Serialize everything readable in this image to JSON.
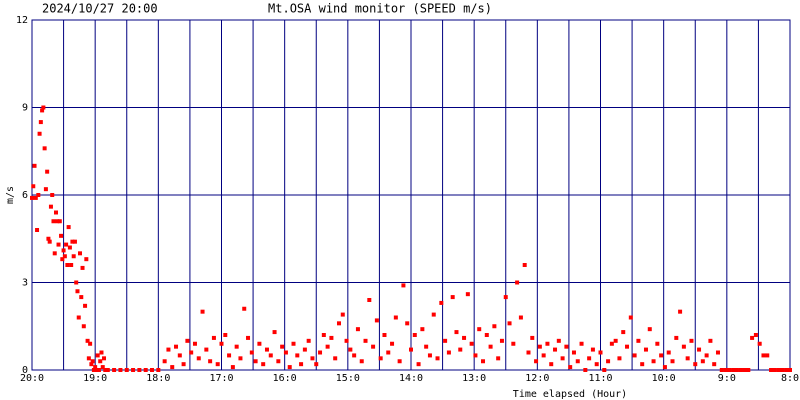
{
  "chart_data": {
    "type": "scatter",
    "header_left": "2024/10/27 20:00",
    "title": "Mt.OSA wind monitor (SPEED m/s)",
    "y_label": "m/s",
    "x_label": "Time elapsed (Hour)",
    "color": "#ff0000",
    "grid_color": "#000080",
    "grid": true,
    "xlim": [
      0,
      12
    ],
    "ylim": [
      0,
      12
    ],
    "yticks": [
      0,
      3,
      6,
      9,
      12
    ],
    "xticks": [
      {
        "value": 0,
        "label": "20:0"
      },
      {
        "value": 1,
        "label": "19:0"
      },
      {
        "value": 2,
        "label": "18:0"
      },
      {
        "value": 3,
        "label": "17:0"
      },
      {
        "value": 4,
        "label": "16:0"
      },
      {
        "value": 5,
        "label": "15:0"
      },
      {
        "value": 6,
        "label": "14:0"
      },
      {
        "value": 7,
        "label": "13:0"
      },
      {
        "value": 8,
        "label": "12:0"
      },
      {
        "value": 9,
        "label": "11:0"
      },
      {
        "value": 10,
        "label": "10:0"
      },
      {
        "value": 11,
        "label": "9:0"
      },
      {
        "value": 12,
        "label": "8:0"
      }
    ],
    "xminorticks": [
      0.5,
      1.5,
      2.5,
      3.5,
      4.5,
      5.5,
      6.5,
      7.5,
      8.5,
      9.5,
      10.5,
      11.5
    ],
    "x": [
      0,
      0.02,
      0.04,
      0.06,
      0.08,
      0.1,
      0.12,
      0.14,
      0.16,
      0.18,
      0.2,
      0.22,
      0.24,
      0.26,
      0.28,
      0.3,
      0.32,
      0.34,
      0.36,
      0.38,
      0.4,
      0.42,
      0.44,
      0.46,
      0.48,
      0.5,
      0.52,
      0.54,
      0.56,
      0.58,
      0.6,
      0.62,
      0.64,
      0.66,
      0.68,
      0.7,
      0.72,
      0.74,
      0.76,
      0.78,
      0.8,
      0.82,
      0.84,
      0.86,
      0.88,
      0.9,
      0.92,
      0.94,
      0.96,
      0.98,
      1,
      1.02,
      1.04,
      1.06,
      1.08,
      1.1,
      1.12,
      1.14,
      1.16,
      1.2,
      1.3,
      1.4,
      1.5,
      1.6,
      1.7,
      1.8,
      1.9,
      2,
      2.1,
      2.16,
      2.22,
      2.28,
      2.34,
      2.4,
      2.46,
      2.52,
      2.58,
      2.64,
      2.7,
      2.76,
      2.82,
      2.88,
      2.94,
      3,
      3.06,
      3.12,
      3.18,
      3.24,
      3.3,
      3.36,
      3.42,
      3.48,
      3.54,
      3.6,
      3.66,
      3.72,
      3.78,
      3.84,
      3.9,
      3.96,
      4.02,
      4.08,
      4.14,
      4.2,
      4.26,
      4.32,
      4.38,
      4.44,
      4.5,
      4.56,
      4.62,
      4.68,
      4.74,
      4.8,
      4.86,
      4.92,
      4.98,
      5.04,
      5.1,
      5.16,
      5.22,
      5.28,
      5.34,
      5.4,
      5.46,
      5.52,
      5.58,
      5.64,
      5.7,
      5.76,
      5.82,
      5.88,
      5.94,
      6,
      6.06,
      6.12,
      6.18,
      6.24,
      6.3,
      6.36,
      6.42,
      6.48,
      6.54,
      6.6,
      6.66,
      6.72,
      6.78,
      6.84,
      6.9,
      6.96,
      7.02,
      7.08,
      7.14,
      7.2,
      7.26,
      7.32,
      7.38,
      7.44,
      7.5,
      7.56,
      7.62,
      7.68,
      7.74,
      7.8,
      7.86,
      7.92,
      7.98,
      8.04,
      8.1,
      8.16,
      8.22,
      8.28,
      8.34,
      8.4,
      8.46,
      8.52,
      8.58,
      8.64,
      8.7,
      8.76,
      8.82,
      8.88,
      8.94,
      9,
      9.06,
      9.12,
      9.18,
      9.24,
      9.3,
      9.36,
      9.42,
      9.48,
      9.54,
      9.6,
      9.66,
      9.72,
      9.78,
      9.84,
      9.9,
      9.96,
      10.02,
      10.08,
      10.14,
      10.2,
      10.26,
      10.32,
      10.38,
      10.44,
      10.5,
      10.56,
      10.62,
      10.68,
      10.74,
      10.8,
      10.86,
      10.92,
      10.98,
      11.04,
      11.1,
      11.16,
      11.22,
      11.28,
      11.34,
      11.4,
      11.46,
      11.52,
      11.58,
      11.64,
      11.7,
      11.76,
      11.82,
      11.88,
      11.94,
      12
    ],
    "values": [
      5.9,
      6.3,
      7.0,
      5.9,
      4.8,
      6.0,
      8.1,
      8.5,
      8.9,
      9.0,
      7.6,
      6.2,
      6.8,
      4.5,
      4.4,
      5.6,
      6.0,
      5.1,
      4.0,
      5.4,
      5.1,
      4.3,
      5.1,
      4.6,
      3.8,
      4.1,
      3.9,
      4.3,
      3.6,
      4.9,
      4.2,
      3.6,
      4.4,
      3.9,
      4.4,
      3.0,
      2.7,
      1.8,
      4.0,
      2.5,
      3.5,
      1.5,
      2.2,
      3.8,
      1.0,
      0.4,
      0.9,
      0.2,
      0.3,
      0,
      0.1,
      0,
      0.5,
      0,
      0.3,
      0.6,
      0.1,
      0.4,
      0,
      0,
      0,
      0,
      0,
      0,
      0,
      0,
      0,
      0,
      0.3,
      0.7,
      0.1,
      0.8,
      0.5,
      0.2,
      1.0,
      0.6,
      0.9,
      0.4,
      2.0,
      0.7,
      0.3,
      1.1,
      0.2,
      0.9,
      1.2,
      0.5,
      0.1,
      0.8,
      0.4,
      2.1,
      1.1,
      0.6,
      0.3,
      0.9,
      0.2,
      0.7,
      0.5,
      1.3,
      0.3,
      0.8,
      0.6,
      0.1,
      0.9,
      0.5,
      0.2,
      0.7,
      1.0,
      0.4,
      0.2,
      0.6,
      1.2,
      0.8,
      1.1,
      0.4,
      1.6,
      1.9,
      1.0,
      0.7,
      0.5,
      1.4,
      0.3,
      1.0,
      2.4,
      0.8,
      1.7,
      0.4,
      1.2,
      0.6,
      0.9,
      1.8,
      0.3,
      2.9,
      1.6,
      0.7,
      1.2,
      0.2,
      1.4,
      0.8,
      0.5,
      1.9,
      0.4,
      2.3,
      1.0,
      0.6,
      2.5,
      1.3,
      0.7,
      1.1,
      2.6,
      0.9,
      0.5,
      1.4,
      0.3,
      1.2,
      0.8,
      1.5,
      0.4,
      1.0,
      2.5,
      1.6,
      0.9,
      3.0,
      1.8,
      3.6,
      0.6,
      1.1,
      0.3,
      0.8,
      0.5,
      0.9,
      0.2,
      0.7,
      1.0,
      0.4,
      0.8,
      0.1,
      0.6,
      0.3,
      0.9,
      0,
      0.4,
      0.7,
      0.2,
      0.6,
      0,
      0.3,
      0.9,
      1.0,
      0.4,
      1.3,
      0.8,
      1.8,
      0.5,
      1.0,
      0.2,
      0.7,
      1.4,
      0.3,
      0.9,
      0.5,
      0.1,
      0.6,
      0.3,
      1.1,
      2.0,
      0.8,
      0.4,
      1.0,
      0.2,
      0.7,
      0.3,
      0.5,
      1.0,
      0.2,
      0.6,
      0,
      0,
      0,
      0,
      0,
      0,
      0,
      0,
      1.1,
      1.2,
      0.9,
      0.5,
      0.5,
      0,
      0,
      0,
      0,
      0,
      0
    ]
  }
}
